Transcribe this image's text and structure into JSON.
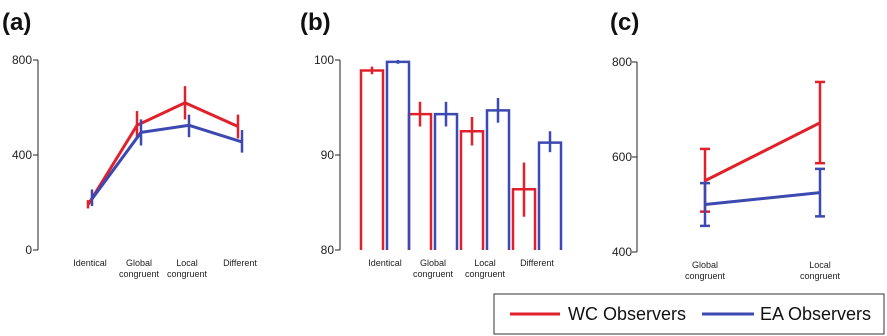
{
  "colors": {
    "wc": "#e0202a",
    "ea": "#3c49b0",
    "axis": "#222222"
  },
  "legend": {
    "wc": "WC Observers",
    "ea": "EA Observers"
  },
  "chart_data": [
    {
      "label": "(a)",
      "type": "line",
      "categories": [
        [
          "Identical"
        ],
        [
          "Global",
          "congruent"
        ],
        [
          "Local",
          "congruent"
        ],
        [
          "Different"
        ]
      ],
      "ylim": [
        0,
        800
      ],
      "yticks": [
        0,
        400,
        800
      ],
      "series": [
        {
          "name": "WC Observers",
          "values": [
            190,
            525,
            620,
            520
          ],
          "err": [
            [
              175,
              210
            ],
            [
              470,
              585
            ],
            [
              550,
              690
            ],
            [
              470,
              570
            ]
          ]
        },
        {
          "name": "EA Observers",
          "values": [
            215,
            495,
            525,
            455
          ],
          "err": [
            [
              185,
              255
            ],
            [
              440,
              550
            ],
            [
              475,
              570
            ],
            [
              410,
              505
            ]
          ]
        }
      ]
    },
    {
      "label": "(b)",
      "type": "bar",
      "categories": [
        [
          "Identical"
        ],
        [
          "Global",
          "congruent"
        ],
        [
          "Local",
          "congruent"
        ],
        [
          "Different"
        ]
      ],
      "ylim": [
        80,
        100
      ],
      "yticks": [
        80,
        90,
        100
      ],
      "series": [
        {
          "name": "WC Observers",
          "values": [
            98.9,
            94.3,
            92.5,
            86.4
          ],
          "err": [
            [
              98.5,
              99.3
            ],
            [
              93.0,
              95.6
            ],
            [
              91.0,
              94.0
            ],
            [
              83.5,
              89.2
            ]
          ]
        },
        {
          "name": "EA Observers",
          "values": [
            99.8,
            94.3,
            94.7,
            91.3
          ],
          "err": [
            [
              99.6,
              100.0
            ],
            [
              93.0,
              95.6
            ],
            [
              93.4,
              96.0
            ],
            [
              90.3,
              92.5
            ]
          ]
        }
      ]
    },
    {
      "label": "(c)",
      "type": "line",
      "categories": [
        [
          "Global",
          "congruent"
        ],
        [
          "Local",
          "congruent"
        ]
      ],
      "ylim": [
        400,
        800
      ],
      "yticks": [
        400,
        600,
        800
      ],
      "series": [
        {
          "name": "WC Observers",
          "values": [
            550,
            672
          ],
          "err": [
            [
              485,
              617
            ],
            [
              587,
              758
            ]
          ]
        },
        {
          "name": "EA Observers",
          "values": [
            500,
            525
          ],
          "err": [
            [
              455,
              545
            ],
            [
              475,
              575
            ]
          ]
        }
      ]
    }
  ]
}
